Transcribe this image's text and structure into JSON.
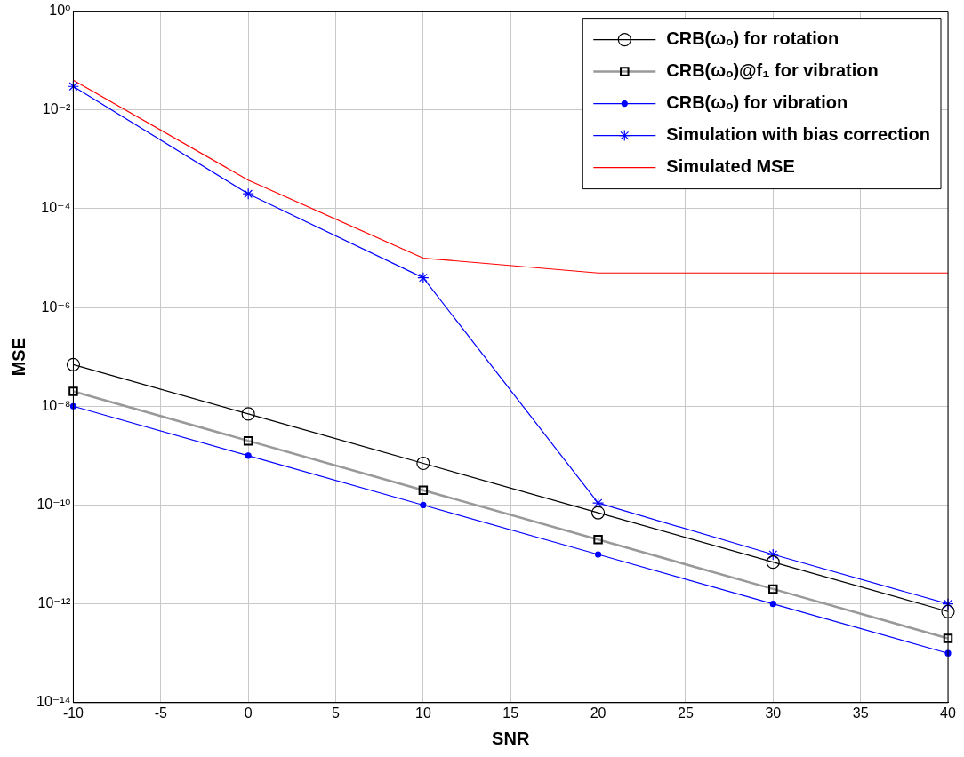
{
  "chart_data": {
    "type": "line",
    "xlabel": "SNR",
    "ylabel": "MSE",
    "log": "y",
    "grid": true,
    "legend": "top right",
    "x": [
      -10,
      0,
      10,
      20,
      30,
      40
    ],
    "xlim": [
      -10,
      40
    ],
    "xticks": [
      -10,
      -5,
      0,
      5,
      10,
      15,
      20,
      25,
      30,
      35,
      40
    ],
    "ylim": [
      1e-14,
      1
    ],
    "yticks": [
      {
        "value": 1e-14,
        "label": "10⁻¹⁴"
      },
      {
        "value": 1e-12,
        "label": "10⁻¹²"
      },
      {
        "value": 1e-10,
        "label": "10⁻¹⁰"
      },
      {
        "value": 1e-08,
        "label": "10⁻⁸"
      },
      {
        "value": 1e-06,
        "label": "10⁻⁶"
      },
      {
        "value": 0.0001,
        "label": "10⁻⁴"
      },
      {
        "value": 0.01,
        "label": "10⁻²"
      },
      {
        "value": 1,
        "label": "10⁰"
      }
    ],
    "series": [
      {
        "name": "CRB(ωₒ) for rotation",
        "color": "#000000",
        "marker": "circle",
        "values": [
          7e-08,
          7e-09,
          7e-10,
          7e-11,
          7e-12,
          7e-13
        ]
      },
      {
        "name": "CRB(ωₒ)@f₁ for vibration",
        "color": "#999999",
        "marker": "square",
        "values": [
          2e-08,
          2e-09,
          2e-10,
          2e-11,
          2e-12,
          2e-13
        ]
      },
      {
        "name": "CRB(ωₒ) for vibration",
        "color": "#0000ff",
        "marker": "dot",
        "values": [
          1e-08,
          1e-09,
          1e-10,
          1e-11,
          1e-12,
          1e-13
        ]
      },
      {
        "name": "Simulation with bias correction",
        "color": "#0000ff",
        "marker": "cross",
        "values": [
          0.03,
          0.0002,
          4e-06,
          1.1e-10,
          1e-11,
          1e-12
        ]
      },
      {
        "name": "Simulated MSE",
        "color": "#ff0000",
        "marker": "none",
        "values": [
          0.04,
          0.00038,
          1e-05,
          5e-06,
          5e-06,
          5e-06
        ]
      }
    ]
  }
}
